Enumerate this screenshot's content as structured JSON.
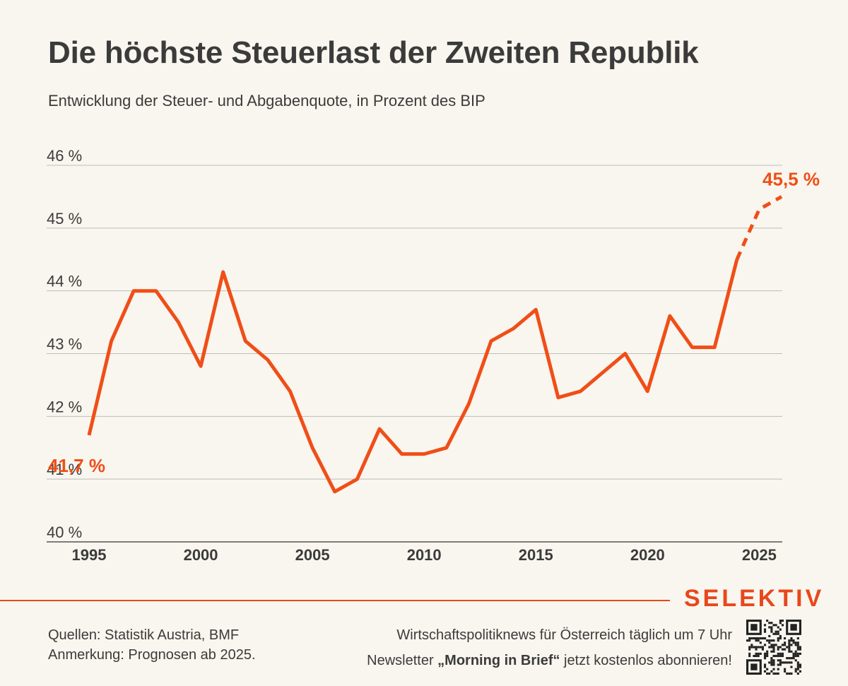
{
  "header": {
    "title": "Die höchste Steuerlast der Zweiten Republik",
    "subtitle": "Entwicklung der Steuer- und Abgabenquote, in Prozent des BIP"
  },
  "chart_data": {
    "type": "line",
    "title": "Die höchste Steuerlast der Zweiten Republik",
    "subtitle": "Entwicklung der Steuer- und Abgabenquote, in Prozent des BIP",
    "xlabel": "",
    "ylabel": "",
    "xlim": [
      1995,
      2026
    ],
    "ylim": [
      40,
      46
    ],
    "x_ticks": [
      1995,
      2000,
      2005,
      2010,
      2015,
      2020,
      2025
    ],
    "y_ticks": [
      {
        "value": 40,
        "label": "40 %"
      },
      {
        "value": 41,
        "label": "41 %"
      },
      {
        "value": 42,
        "label": "42 %"
      },
      {
        "value": 43,
        "label": "43 %"
      },
      {
        "value": 44,
        "label": "44 %"
      },
      {
        "value": 45,
        "label": "45 %"
      },
      {
        "value": 46,
        "label": "46 %"
      }
    ],
    "grid": true,
    "line_color": "#f04e18",
    "series": [
      {
        "name": "Steuer- und Abgabenquote",
        "x": [
          1995,
          1996,
          1997,
          1998,
          1999,
          2000,
          2001,
          2002,
          2003,
          2004,
          2005,
          2006,
          2007,
          2008,
          2009,
          2010,
          2011,
          2012,
          2013,
          2014,
          2015,
          2016,
          2017,
          2018,
          2019,
          2020,
          2021,
          2022,
          2023,
          2024
        ],
        "values": [
          41.7,
          43.2,
          44.0,
          44.0,
          43.5,
          42.8,
          44.3,
          43.2,
          42.9,
          42.4,
          41.5,
          40.8,
          41.0,
          41.8,
          41.4,
          41.4,
          41.5,
          42.2,
          43.2,
          43.4,
          43.7,
          42.3,
          42.4,
          42.7,
          43.0,
          42.4,
          43.6,
          43.1,
          43.1,
          44.5
        ],
        "style": "solid"
      },
      {
        "name": "Prognose",
        "x": [
          2024,
          2025,
          2026
        ],
        "values": [
          44.5,
          45.3,
          45.5
        ],
        "style": "dashed"
      }
    ],
    "annotations": [
      {
        "text": "41,7 %",
        "x": 1995,
        "y": 41.7
      },
      {
        "text": "45,5 %",
        "x": 2026,
        "y": 45.5
      }
    ]
  },
  "footer": {
    "brand": "SELEKTIV",
    "sources": "Quellen: Statistik Austria, BMF",
    "note": "Anmerkung: Prognosen ab 2025.",
    "promo_line1": "Wirtschaftspolitiknews für Österreich täglich um 7 Uhr",
    "promo_line2_pre": "Newsletter ",
    "promo_line2_bold": "„Morning in Brief“",
    "promo_line2_post": " jetzt kostenlos abonnieren!"
  }
}
